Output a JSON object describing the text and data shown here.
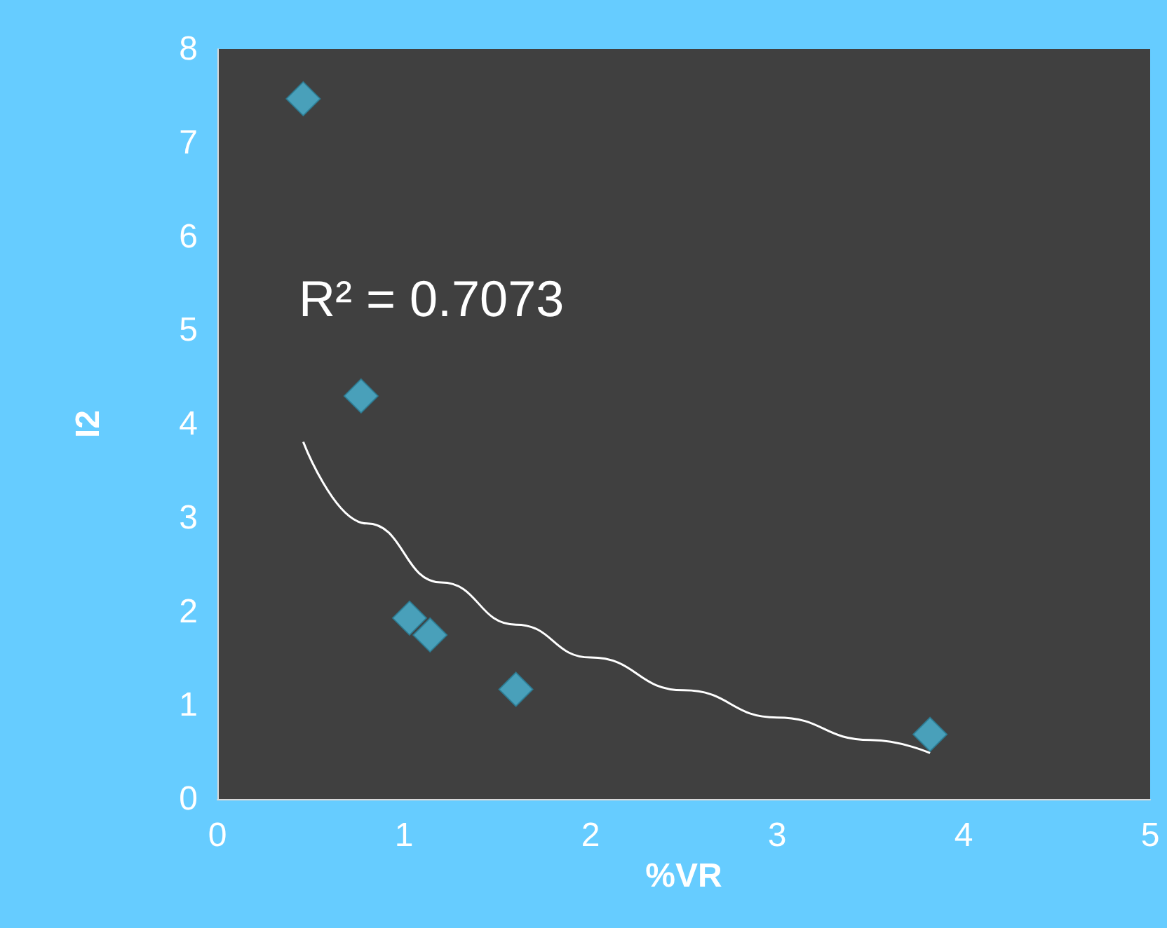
{
  "chart_data": {
    "type": "scatter",
    "xlabel": "%VR",
    "ylabel": "I2",
    "xlim": [
      0,
      5
    ],
    "xticks": [
      0,
      1,
      2,
      3,
      4,
      5
    ],
    "ylim": [
      0,
      8
    ],
    "yticks": [
      0,
      1,
      2,
      3,
      4,
      5,
      6,
      7,
      8
    ],
    "grid": false,
    "annotations": [
      "R² = 0.7073"
    ],
    "series": [
      {
        "color": "#4bb8d8",
        "marker": "diamond",
        "x": [
          0.46,
          0.77,
          1.03,
          1.14,
          1.6,
          3.82
        ],
        "values": [
          7.47,
          4.3,
          1.93,
          1.75,
          1.17,
          0.69
        ]
      },
      {
        "type": "line",
        "color": "#ffffff",
        "line_style": "solid",
        "marker": "none",
        "x": [
          0.46,
          0.8,
          1.2,
          1.6,
          2.0,
          2.5,
          3.0,
          3.5,
          3.82
        ],
        "values": [
          3.81,
          2.94,
          2.31,
          1.86,
          1.51,
          1.16,
          0.87,
          0.63,
          0.49
        ]
      }
    ]
  }
}
